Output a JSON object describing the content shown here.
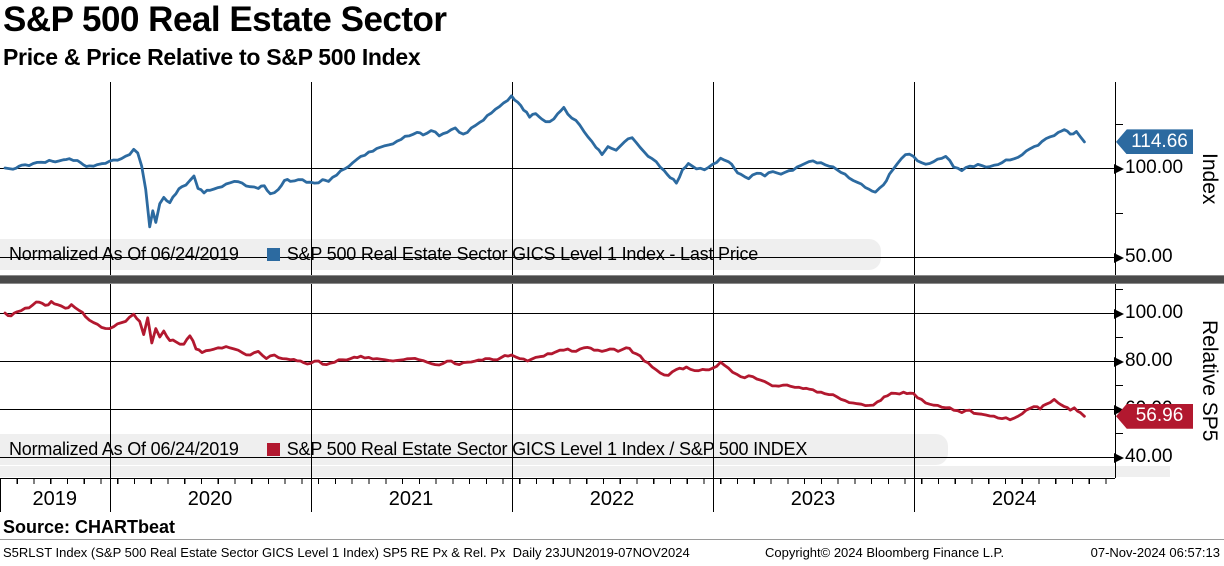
{
  "header": {
    "title": "S&P 500 Real Estate Sector",
    "subtitle": "Price & Price Relative to S&P 500 Index"
  },
  "panels": {
    "price": {
      "axis_title": "Index",
      "last_price": "114.66",
      "legend": {
        "normalized": "Normalized As Of 06/24/2019",
        "series": "S&P 500 Real Estate Sector GICS Level 1 Index - Last Price"
      },
      "y_ticks": [
        {
          "value": 100,
          "label": "100.00"
        },
        {
          "value": 50,
          "label": "50.00"
        }
      ],
      "y_minor_ticks": [
        125,
        75
      ]
    },
    "relative": {
      "axis_title": "Relative SP5",
      "last_price": "56.96",
      "legend": {
        "normalized": "Normalized As Of 06/24/2019",
        "series": "S&P 500 Real Estate Sector GICS Level 1 Index / S&P 500 INDEX"
      },
      "y_ticks": [
        {
          "value": 100,
          "label": "100.00"
        },
        {
          "value": 80,
          "label": "80.00"
        },
        {
          "value": 60,
          "label": "60.00"
        },
        {
          "value": 40,
          "label": "40.00"
        }
      ],
      "y_minor_ticks": [
        110,
        90,
        70,
        50
      ]
    }
  },
  "x_axis": {
    "years": [
      "2019",
      "2020",
      "2021",
      "2022",
      "2023",
      "2024"
    ],
    "range_decimal_years": [
      2019.455,
      2025.0
    ],
    "data_range": "23JUN2019-07NOV2024"
  },
  "footer": {
    "source": "Source: CHARTbeat",
    "description": "S5RLST Index (S&P 500 Real Estate Sector GICS Level 1 Index) SP5 RE Px & Rel. Px  Daily 23JUN2019-07NOV2024",
    "copyright": "Copyright© 2024 Bloomberg Finance L.P.",
    "datetime": "07-Nov-2024 06:57:13"
  },
  "colors": {
    "price_line": "#2c6aa0",
    "relative_line": "#b2182f",
    "legend_strip": "#efefef",
    "splitter": "#4a4a4a",
    "grid": "#000000",
    "tag_text": "#ffffff"
  },
  "chart_data": [
    {
      "type": "line",
      "name": "S&P 500 Real Estate Sector GICS Level 1 Index - Last Price",
      "panel": "Index",
      "normalized_as_of": "06/24/2019",
      "last_value": 114.66,
      "ylim_visible": [
        40,
        150
      ],
      "yticks": [
        50,
        100
      ],
      "x_unit": "decimal_year",
      "points": [
        [
          2019.48,
          100
        ],
        [
          2019.52,
          99.3
        ],
        [
          2019.55,
          101
        ],
        [
          2019.58,
          101.8
        ],
        [
          2019.62,
          102.5
        ],
        [
          2019.66,
          103.2
        ],
        [
          2019.7,
          104.3
        ],
        [
          2019.73,
          103.4
        ],
        [
          2019.77,
          104.6
        ],
        [
          2019.8,
          105.2
        ],
        [
          2019.84,
          104.2
        ],
        [
          2019.87,
          101.8
        ],
        [
          2019.9,
          101.2
        ],
        [
          2019.94,
          101.9
        ],
        [
          2019.98,
          102.6
        ],
        [
          2020.02,
          104.5
        ],
        [
          2020.06,
          105.3
        ],
        [
          2020.1,
          107.5
        ],
        [
          2020.12,
          110.5
        ],
        [
          2020.14,
          108.5
        ],
        [
          2020.16,
          101
        ],
        [
          2020.18,
          88
        ],
        [
          2020.2,
          67
        ],
        [
          2020.215,
          76
        ],
        [
          2020.23,
          69.5
        ],
        [
          2020.25,
          80
        ],
        [
          2020.27,
          83.5
        ],
        [
          2020.3,
          80.5
        ],
        [
          2020.33,
          85.5
        ],
        [
          2020.36,
          89.5
        ],
        [
          2020.4,
          93
        ],
        [
          2020.42,
          95.5
        ],
        [
          2020.44,
          88.5
        ],
        [
          2020.47,
          86
        ],
        [
          2020.5,
          87.5
        ],
        [
          2020.54,
          89
        ],
        [
          2020.58,
          91
        ],
        [
          2020.62,
          92.5
        ],
        [
          2020.66,
          91.5
        ],
        [
          2020.7,
          89.5
        ],
        [
          2020.74,
          88.5
        ],
        [
          2020.77,
          90
        ],
        [
          2020.8,
          85.5
        ],
        [
          2020.84,
          88
        ],
        [
          2020.87,
          93
        ],
        [
          2020.9,
          92.5
        ],
        [
          2020.94,
          93.5
        ],
        [
          2020.98,
          92
        ],
        [
          2021.02,
          91.5
        ],
        [
          2021.06,
          93.5
        ],
        [
          2021.09,
          92.5
        ],
        [
          2021.13,
          96
        ],
        [
          2021.17,
          99.5
        ],
        [
          2021.21,
          103
        ],
        [
          2021.25,
          106.5
        ],
        [
          2021.29,
          109
        ],
        [
          2021.33,
          111
        ],
        [
          2021.37,
          112.5
        ],
        [
          2021.41,
          113.5
        ],
        [
          2021.45,
          116
        ],
        [
          2021.49,
          118
        ],
        [
          2021.53,
          120
        ],
        [
          2021.56,
          118.5
        ],
        [
          2021.6,
          121
        ],
        [
          2021.64,
          118
        ],
        [
          2021.68,
          120
        ],
        [
          2021.72,
          122.5
        ],
        [
          2021.76,
          119
        ],
        [
          2021.8,
          122.5
        ],
        [
          2021.84,
          125.5
        ],
        [
          2021.88,
          129.5
        ],
        [
          2021.92,
          133
        ],
        [
          2021.96,
          136.5
        ],
        [
          2022.0,
          140.5
        ],
        [
          2022.03,
          137
        ],
        [
          2022.06,
          132.5
        ],
        [
          2022.09,
          128.5
        ],
        [
          2022.12,
          130.5
        ],
        [
          2022.15,
          127.5
        ],
        [
          2022.19,
          126
        ],
        [
          2022.23,
          130.5
        ],
        [
          2022.26,
          134
        ],
        [
          2022.3,
          128
        ],
        [
          2022.34,
          124
        ],
        [
          2022.38,
          117.5
        ],
        [
          2022.42,
          111.5
        ],
        [
          2022.45,
          107.5
        ],
        [
          2022.48,
          112
        ],
        [
          2022.52,
          110
        ],
        [
          2022.56,
          114.5
        ],
        [
          2022.6,
          117
        ],
        [
          2022.64,
          111.5
        ],
        [
          2022.68,
          106.5
        ],
        [
          2022.72,
          103.5
        ],
        [
          2022.76,
          98.5
        ],
        [
          2022.79,
          94.5
        ],
        [
          2022.82,
          91.5
        ],
        [
          2022.85,
          99
        ],
        [
          2022.88,
          102.5
        ],
        [
          2022.92,
          99.5
        ],
        [
          2022.96,
          99
        ],
        [
          2023.0,
          102
        ],
        [
          2023.04,
          105.5
        ],
        [
          2023.08,
          103.5
        ],
        [
          2023.11,
          99.5
        ],
        [
          2023.14,
          96.5
        ],
        [
          2023.18,
          94
        ],
        [
          2023.22,
          97
        ],
        [
          2023.26,
          95.5
        ],
        [
          2023.3,
          98
        ],
        [
          2023.34,
          96.5
        ],
        [
          2023.38,
          98.5
        ],
        [
          2023.42,
          100.5
        ],
        [
          2023.46,
          102.5
        ],
        [
          2023.5,
          104
        ],
        [
          2023.54,
          103
        ],
        [
          2023.58,
          101
        ],
        [
          2023.62,
          99
        ],
        [
          2023.66,
          96.5
        ],
        [
          2023.7,
          93
        ],
        [
          2023.74,
          91
        ],
        [
          2023.78,
          88
        ],
        [
          2023.81,
          86.5
        ],
        [
          2023.85,
          90.5
        ],
        [
          2023.88,
          96.5
        ],
        [
          2023.92,
          102.5
        ],
        [
          2023.96,
          107.5
        ],
        [
          2024.0,
          106.5
        ],
        [
          2024.04,
          103
        ],
        [
          2024.08,
          102.5
        ],
        [
          2024.12,
          105
        ],
        [
          2024.16,
          106.5
        ],
        [
          2024.2,
          100.5
        ],
        [
          2024.24,
          98.5
        ],
        [
          2024.28,
          101
        ],
        [
          2024.32,
          102
        ],
        [
          2024.36,
          100.5
        ],
        [
          2024.4,
          101.5
        ],
        [
          2024.44,
          103
        ],
        [
          2024.48,
          104.5
        ],
        [
          2024.52,
          106
        ],
        [
          2024.56,
          109.5
        ],
        [
          2024.6,
          112
        ],
        [
          2024.64,
          115
        ],
        [
          2024.68,
          117.5
        ],
        [
          2024.72,
          120
        ],
        [
          2024.75,
          121.5
        ],
        [
          2024.78,
          119
        ],
        [
          2024.81,
          120.5
        ],
        [
          2024.83,
          117.5
        ],
        [
          2024.85,
          114.66
        ]
      ]
    },
    {
      "type": "line",
      "name": "S&P 500 Real Estate Sector GICS Level 1 Index / S&P 500 INDEX",
      "panel": "Relative SP5",
      "normalized_as_of": "06/24/2019",
      "last_value": 56.96,
      "ylim_visible": [
        34,
        112
      ],
      "yticks": [
        40,
        60,
        80,
        100
      ],
      "x_unit": "decimal_year",
      "points": [
        [
          2019.48,
          100
        ],
        [
          2019.51,
          98.8
        ],
        [
          2019.54,
          100.5
        ],
        [
          2019.58,
          102
        ],
        [
          2019.62,
          103.5
        ],
        [
          2019.65,
          104.5
        ],
        [
          2019.68,
          103.2
        ],
        [
          2019.71,
          104.8
        ],
        [
          2019.74,
          103.5
        ],
        [
          2019.78,
          102
        ],
        [
          2019.81,
          103.5
        ],
        [
          2019.85,
          101
        ],
        [
          2019.88,
          98.5
        ],
        [
          2019.92,
          96
        ],
        [
          2019.96,
          94
        ],
        [
          2020.0,
          93.5
        ],
        [
          2020.04,
          95.5
        ],
        [
          2020.08,
          96.5
        ],
        [
          2020.12,
          99.5
        ],
        [
          2020.15,
          96.5
        ],
        [
          2020.17,
          91
        ],
        [
          2020.19,
          98
        ],
        [
          2020.21,
          87.5
        ],
        [
          2020.23,
          93.5
        ],
        [
          2020.25,
          90
        ],
        [
          2020.27,
          92.5
        ],
        [
          2020.3,
          88.5
        ],
        [
          2020.33,
          88
        ],
        [
          2020.37,
          87
        ],
        [
          2020.4,
          90.5
        ],
        [
          2020.43,
          85
        ],
        [
          2020.46,
          83.5
        ],
        [
          2020.5,
          84.5
        ],
        [
          2020.54,
          85.5
        ],
        [
          2020.58,
          86
        ],
        [
          2020.62,
          85
        ],
        [
          2020.66,
          83.5
        ],
        [
          2020.7,
          82.5
        ],
        [
          2020.74,
          84
        ],
        [
          2020.78,
          81
        ],
        [
          2020.82,
          82.5
        ],
        [
          2020.86,
          81
        ],
        [
          2020.9,
          80.5
        ],
        [
          2020.95,
          80
        ],
        [
          2021.0,
          79
        ],
        [
          2021.04,
          80
        ],
        [
          2021.08,
          78.5
        ],
        [
          2021.12,
          79.5
        ],
        [
          2021.16,
          80.5
        ],
        [
          2021.2,
          81
        ],
        [
          2021.25,
          82
        ],
        [
          2021.29,
          81.5
        ],
        [
          2021.33,
          81
        ],
        [
          2021.37,
          80.5
        ],
        [
          2021.41,
          80
        ],
        [
          2021.46,
          80.5
        ],
        [
          2021.5,
          81
        ],
        [
          2021.54,
          80.5
        ],
        [
          2021.58,
          79.5
        ],
        [
          2021.62,
          78.5
        ],
        [
          2021.66,
          79
        ],
        [
          2021.7,
          80
        ],
        [
          2021.74,
          78.5
        ],
        [
          2021.78,
          79.5
        ],
        [
          2021.82,
          80
        ],
        [
          2021.87,
          81
        ],
        [
          2021.91,
          80.5
        ],
        [
          2021.95,
          81.5
        ],
        [
          2022.0,
          82.5
        ],
        [
          2022.04,
          81
        ],
        [
          2022.08,
          80
        ],
        [
          2022.12,
          81.5
        ],
        [
          2022.16,
          82
        ],
        [
          2022.2,
          83
        ],
        [
          2022.24,
          84.5
        ],
        [
          2022.28,
          85
        ],
        [
          2022.32,
          84
        ],
        [
          2022.36,
          85.5
        ],
        [
          2022.41,
          84.5
        ],
        [
          2022.45,
          84
        ],
        [
          2022.49,
          85
        ],
        [
          2022.53,
          84
        ],
        [
          2022.57,
          85.5
        ],
        [
          2022.62,
          83
        ],
        [
          2022.66,
          80
        ],
        [
          2022.7,
          77.5
        ],
        [
          2022.74,
          75
        ],
        [
          2022.78,
          74
        ],
        [
          2022.82,
          76.5
        ],
        [
          2022.87,
          77.5
        ],
        [
          2022.91,
          76
        ],
        [
          2022.95,
          76.5
        ],
        [
          2023.0,
          77
        ],
        [
          2023.04,
          79.5
        ],
        [
          2023.08,
          77
        ],
        [
          2023.12,
          74.5
        ],
        [
          2023.16,
          73
        ],
        [
          2023.2,
          73.5
        ],
        [
          2023.24,
          72
        ],
        [
          2023.28,
          70.5
        ],
        [
          2023.33,
          69.5
        ],
        [
          2023.37,
          70
        ],
        [
          2023.41,
          69
        ],
        [
          2023.45,
          68.5
        ],
        [
          2023.5,
          68
        ],
        [
          2023.54,
          67
        ],
        [
          2023.58,
          66
        ],
        [
          2023.62,
          65
        ],
        [
          2023.66,
          63.5
        ],
        [
          2023.7,
          62.5
        ],
        [
          2023.74,
          62
        ],
        [
          2023.78,
          61.5
        ],
        [
          2023.82,
          63
        ],
        [
          2023.87,
          65.5
        ],
        [
          2023.91,
          66.5
        ],
        [
          2023.95,
          67
        ],
        [
          2024.0,
          66.5
        ],
        [
          2024.04,
          64
        ],
        [
          2024.08,
          62
        ],
        [
          2024.12,
          61.5
        ],
        [
          2024.16,
          60.5
        ],
        [
          2024.2,
          59.5
        ],
        [
          2024.24,
          58.5
        ],
        [
          2024.28,
          59.5
        ],
        [
          2024.32,
          58
        ],
        [
          2024.36,
          57.5
        ],
        [
          2024.4,
          57
        ],
        [
          2024.44,
          56
        ],
        [
          2024.48,
          55.5
        ],
        [
          2024.52,
          57
        ],
        [
          2024.56,
          59.5
        ],
        [
          2024.6,
          61
        ],
        [
          2024.63,
          60
        ],
        [
          2024.66,
          62
        ],
        [
          2024.7,
          64
        ],
        [
          2024.72,
          62.5
        ],
        [
          2024.75,
          61
        ],
        [
          2024.78,
          59.5
        ],
        [
          2024.8,
          60.5
        ],
        [
          2024.83,
          58.5
        ],
        [
          2024.85,
          56.96
        ]
      ]
    }
  ]
}
